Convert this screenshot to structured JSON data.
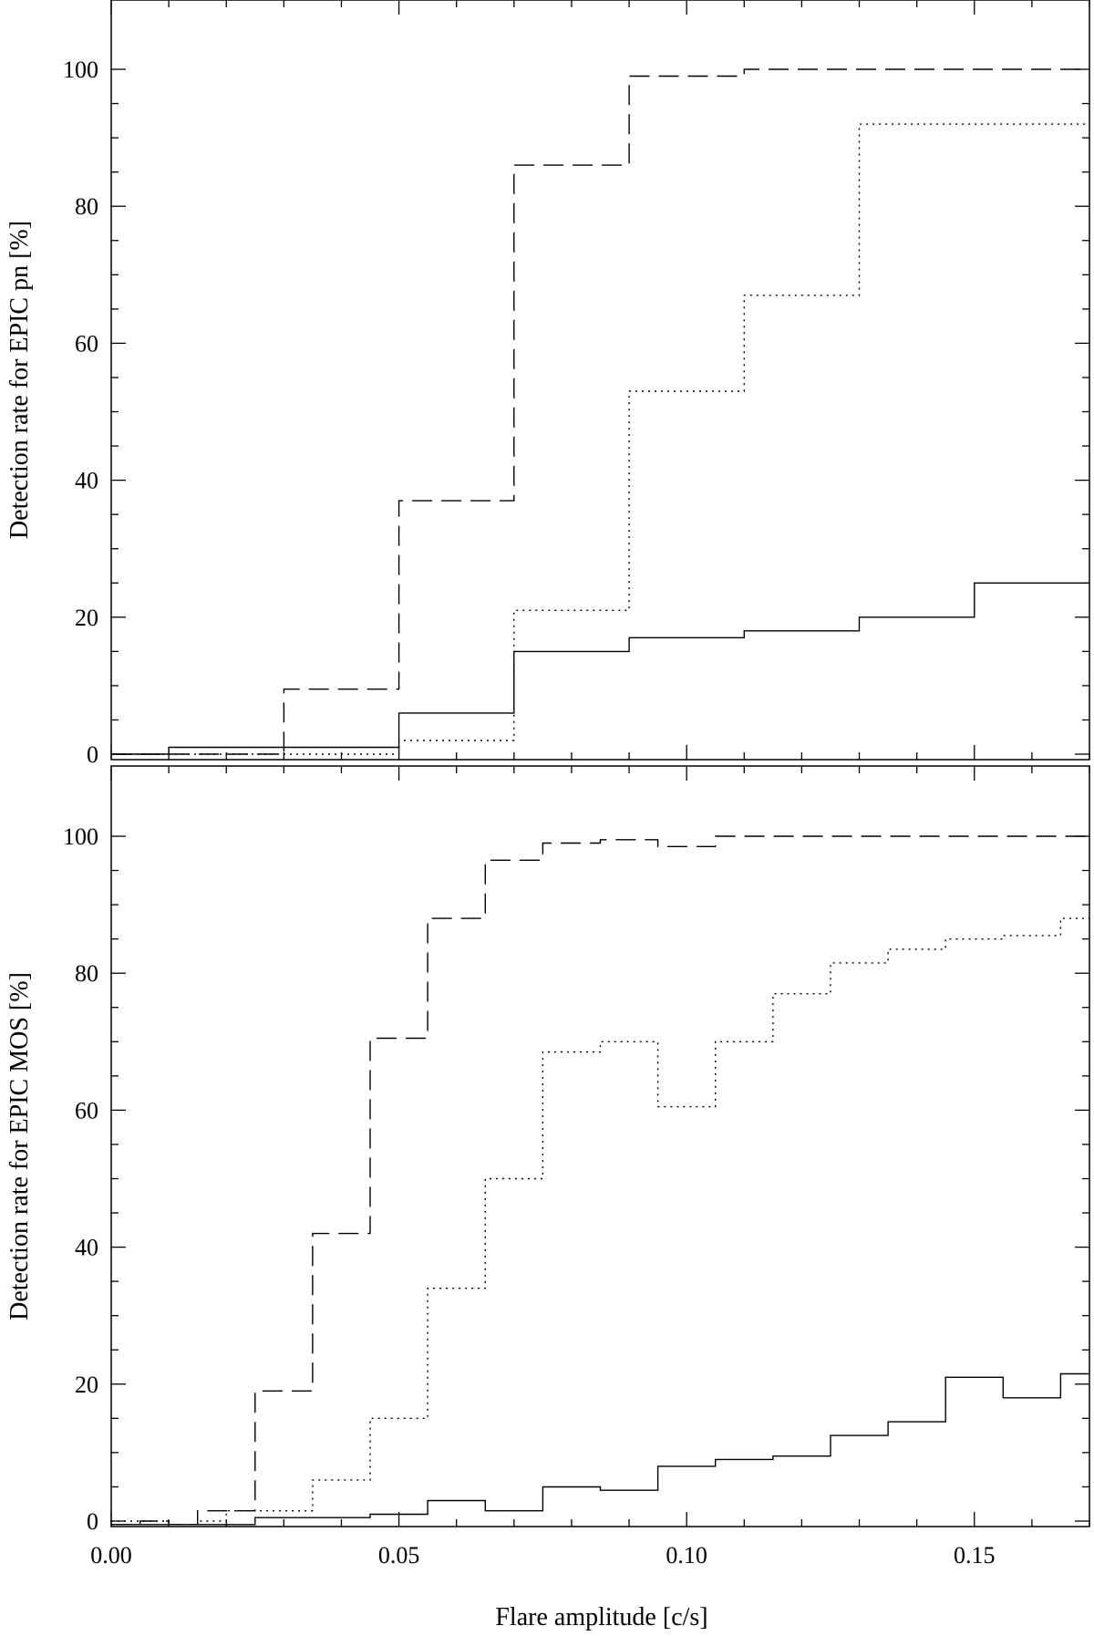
{
  "figure": {
    "xlabel": "Flare amplitude [c/s]"
  },
  "chart_data": [
    {
      "type": "line",
      "drawstyle": "steps",
      "ylabel": "Detection rate for EPIC pn [%]",
      "xlim": [
        0.0,
        0.17
      ],
      "ylim": [
        -1,
        110
      ],
      "yticks": [
        "0",
        "20",
        "40",
        "60",
        "80",
        "100"
      ],
      "xticks_labeled": false,
      "series": [
        {
          "linestyle": "dashed",
          "edges": [
            0.0,
            0.01,
            0.03,
            0.05,
            0.07,
            0.09,
            0.11,
            0.13,
            0.15,
            0.17
          ],
          "values": [
            0,
            0,
            9.5,
            37,
            86,
            99,
            100,
            100,
            100
          ]
        },
        {
          "linestyle": "dotted",
          "edges": [
            0.0,
            0.01,
            0.03,
            0.05,
            0.07,
            0.09,
            0.11,
            0.13,
            0.15,
            0.17
          ],
          "values": [
            0,
            0,
            0,
            2,
            21,
            53,
            67,
            92,
            92
          ]
        },
        {
          "linestyle": "solid",
          "edges": [
            0.0,
            0.01,
            0.03,
            0.05,
            0.07,
            0.09,
            0.11,
            0.13,
            0.15,
            0.17
          ],
          "values": [
            0,
            1,
            1,
            6,
            15,
            17,
            18,
            20,
            25
          ]
        }
      ]
    },
    {
      "type": "line",
      "drawstyle": "steps",
      "ylabel": "Detection rate for EPIC MOS [%]",
      "xlabel": "Flare amplitude [c/s]",
      "xlim": [
        0.0,
        0.17
      ],
      "ylim": [
        -1,
        110
      ],
      "yticks": [
        "0",
        "20",
        "40",
        "60",
        "80",
        "100"
      ],
      "xticks": [
        "0.00",
        "0.05",
        "0.10",
        "0.15"
      ],
      "series": [
        {
          "linestyle": "dashed",
          "edges": [
            0.0,
            0.005,
            0.01,
            0.015,
            0.02,
            0.025,
            0.035,
            0.045,
            0.055,
            0.065,
            0.075,
            0.085,
            0.095,
            0.105,
            0.115,
            0.125,
            0.135,
            0.145,
            0.155,
            0.165,
            0.17
          ],
          "values": [
            -0.5,
            0,
            -0.5,
            1.5,
            1.5,
            19,
            42,
            70.5,
            88,
            96.5,
            99,
            99.5,
            98.5,
            100,
            100,
            100,
            100,
            100,
            100,
            100
          ]
        },
        {
          "linestyle": "dotted",
          "edges": [
            0.0,
            0.005,
            0.01,
            0.015,
            0.02,
            0.025,
            0.035,
            0.045,
            0.055,
            0.065,
            0.075,
            0.085,
            0.095,
            0.105,
            0.115,
            0.125,
            0.135,
            0.145,
            0.155,
            0.165,
            0.17
          ],
          "values": [
            0,
            0,
            -0.5,
            0,
            1.5,
            1.5,
            6,
            15,
            34,
            50,
            68.5,
            70,
            60.5,
            70,
            77,
            81.5,
            83.5,
            85,
            85.5,
            88
          ]
        },
        {
          "linestyle": "solid",
          "edges": [
            0.0,
            0.005,
            0.01,
            0.015,
            0.02,
            0.025,
            0.035,
            0.045,
            0.055,
            0.065,
            0.075,
            0.085,
            0.095,
            0.105,
            0.115,
            0.125,
            0.135,
            0.145,
            0.155,
            0.165,
            0.17
          ],
          "values": [
            -0.5,
            -0.5,
            -0.5,
            -0.5,
            -0.5,
            0.5,
            0.5,
            1,
            3,
            1.5,
            5,
            4.5,
            8,
            9,
            9.5,
            12.5,
            14.5,
            21,
            18,
            21.5
          ]
        }
      ]
    }
  ]
}
